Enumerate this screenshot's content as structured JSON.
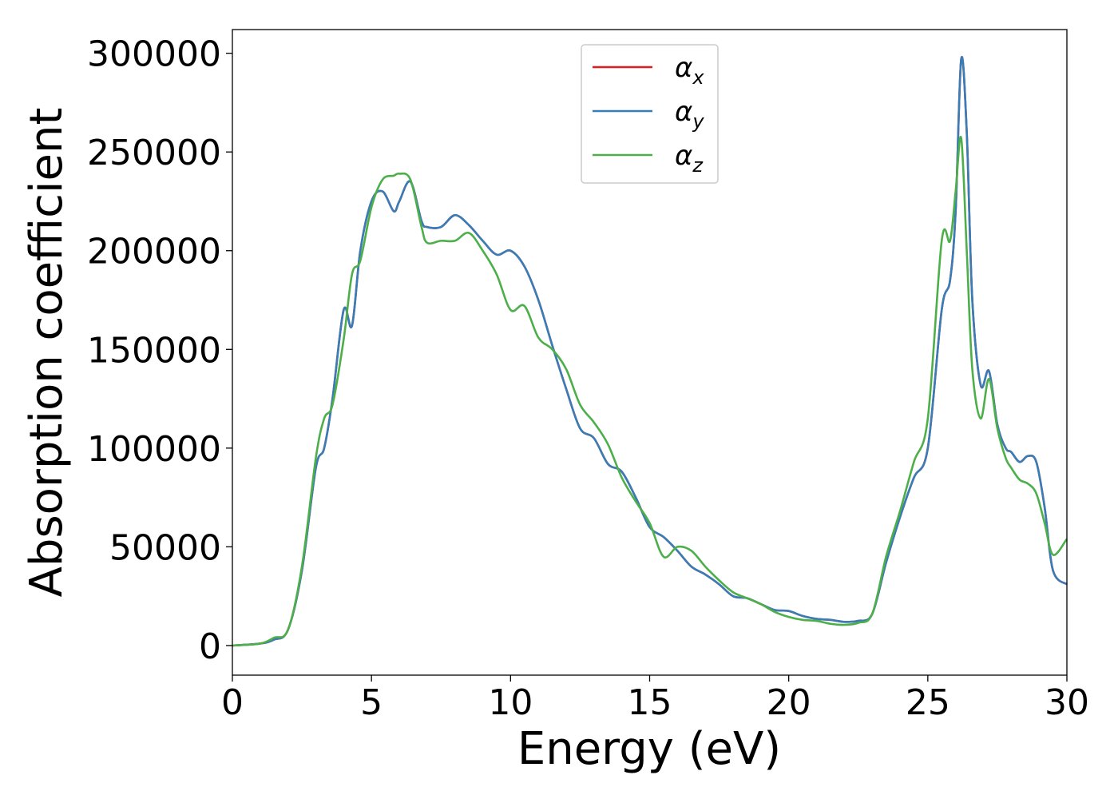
{
  "chart_data": {
    "type": "line",
    "title": "",
    "xlabel": "Energy (eV)",
    "ylabel": "Absorption coefficient",
    "xlim": [
      0,
      30
    ],
    "ylim": [
      -15000,
      312000
    ],
    "xticks": [
      0,
      5,
      10,
      15,
      20,
      25,
      30
    ],
    "xtick_labels": [
      "0",
      "5",
      "10",
      "15",
      "20",
      "25",
      "30"
    ],
    "yticks": [
      0,
      50000,
      100000,
      150000,
      200000,
      250000,
      300000
    ],
    "ytick_labels": [
      "0",
      "50000",
      "100000",
      "150000",
      "200000",
      "250000",
      "300000"
    ],
    "grid": false,
    "legend_position": "top-center",
    "colors": {
      "alpha_x": "#e41a1c",
      "alpha_y": "#377eb8",
      "alpha_z": "#4daf4a"
    },
    "series": [
      {
        "name": "α_x",
        "symbol": "α",
        "subscript": "x",
        "color": "#e41a1c",
        "x": [
          0,
          1,
          1.5,
          2,
          2.5,
          3,
          3.3,
          3.6,
          4,
          4.3,
          4.6,
          5,
          5.4,
          5.8,
          6,
          6.4,
          6.8,
          7,
          7.5,
          8,
          8.5,
          9,
          9.5,
          10,
          10.5,
          11,
          11.5,
          12,
          12.5,
          13,
          13.5,
          14,
          14.5,
          15,
          15.5,
          16,
          16.5,
          17,
          17.5,
          18,
          18.5,
          19,
          19.5,
          20,
          20.5,
          21,
          21.5,
          22,
          22.5,
          23,
          23.5,
          24,
          24.5,
          25,
          25.5,
          25.8,
          26,
          26.2,
          26.4,
          26.6,
          26.9,
          27.2,
          27.5,
          27.8,
          28,
          28.3,
          28.6,
          28.9,
          29.2,
          29.5,
          30
        ],
        "values": [
          0,
          1000,
          3000,
          8000,
          38000,
          90000,
          100000,
          125000,
          170000,
          162000,
          200000,
          225000,
          230000,
          220000,
          225000,
          235000,
          215000,
          212000,
          212000,
          218000,
          213000,
          205000,
          198000,
          200000,
          192000,
          175000,
          152000,
          130000,
          110000,
          105000,
          92000,
          88000,
          75000,
          60000,
          55000,
          48000,
          40000,
          36000,
          31000,
          25000,
          24000,
          21000,
          18000,
          17500,
          15000,
          13500,
          13000,
          12000,
          12500,
          16000,
          42000,
          65000,
          85000,
          100000,
          170000,
          185000,
          220000,
          297000,
          260000,
          175000,
          132000,
          139000,
          112000,
          100000,
          98000,
          93000,
          96000,
          93000,
          70000,
          38000,
          31000
        ]
      },
      {
        "name": "α_y",
        "symbol": "α",
        "subscript": "y",
        "color": "#377eb8",
        "x": [
          0,
          1,
          1.5,
          2,
          2.5,
          3,
          3.3,
          3.6,
          4,
          4.3,
          4.6,
          5,
          5.4,
          5.8,
          6,
          6.4,
          6.8,
          7,
          7.5,
          8,
          8.5,
          9,
          9.5,
          10,
          10.5,
          11,
          11.5,
          12,
          12.5,
          13,
          13.5,
          14,
          14.5,
          15,
          15.5,
          16,
          16.5,
          17,
          17.5,
          18,
          18.5,
          19,
          19.5,
          20,
          20.5,
          21,
          21.5,
          22,
          22.5,
          23,
          23.5,
          24,
          24.5,
          25,
          25.5,
          25.8,
          26,
          26.2,
          26.4,
          26.6,
          26.9,
          27.2,
          27.5,
          27.8,
          28,
          28.3,
          28.6,
          28.9,
          29.2,
          29.5,
          30
        ],
        "values": [
          0,
          1000,
          3000,
          8000,
          38000,
          90000,
          100000,
          125000,
          170000,
          162000,
          200000,
          225000,
          230000,
          220000,
          225000,
          235000,
          215000,
          212000,
          212000,
          218000,
          213000,
          205000,
          198000,
          200000,
          192000,
          175000,
          152000,
          130000,
          110000,
          105000,
          92000,
          88000,
          75000,
          60000,
          55000,
          48000,
          40000,
          36000,
          31000,
          25000,
          24000,
          21000,
          18000,
          17500,
          15000,
          13500,
          13000,
          12000,
          12500,
          16000,
          42000,
          65000,
          85000,
          100000,
          170000,
          185000,
          220000,
          297000,
          260000,
          175000,
          132000,
          139000,
          112000,
          100000,
          98000,
          93000,
          96000,
          93000,
          70000,
          38000,
          31000
        ]
      },
      {
        "name": "α_z",
        "symbol": "α",
        "subscript": "z",
        "color": "#4daf4a",
        "x": [
          0,
          1,
          1.5,
          2,
          2.5,
          3,
          3.3,
          3.6,
          4,
          4.3,
          4.6,
          5,
          5.4,
          5.8,
          6,
          6.4,
          6.8,
          7,
          7.5,
          8,
          8.5,
          9,
          9.5,
          10,
          10.5,
          11,
          11.5,
          12,
          12.5,
          13,
          13.5,
          14,
          14.5,
          15,
          15.5,
          16,
          16.5,
          17,
          17.5,
          18,
          18.5,
          19,
          19.5,
          20,
          20.5,
          21,
          21.5,
          22,
          22.5,
          23,
          23.5,
          24,
          24.5,
          25,
          25.5,
          25.8,
          26,
          26.2,
          26.4,
          26.6,
          26.9,
          27.2,
          27.5,
          27.8,
          28,
          28.3,
          28.6,
          28.9,
          29.2,
          29.5,
          30
        ],
        "values": [
          0,
          1000,
          4000,
          8000,
          40000,
          95000,
          115000,
          122000,
          155000,
          188000,
          195000,
          222000,
          236000,
          238000,
          239000,
          236000,
          212000,
          204000,
          205000,
          205000,
          209000,
          200000,
          188000,
          170000,
          172000,
          156000,
          150000,
          140000,
          122000,
          113000,
          102000,
          85000,
          73000,
          62000,
          45000,
          50000,
          48000,
          40000,
          33000,
          27000,
          24000,
          21000,
          17000,
          14500,
          13000,
          12500,
          11000,
          10500,
          11500,
          16000,
          45000,
          68000,
          93000,
          115000,
          205000,
          205000,
          230000,
          257000,
          200000,
          140000,
          115000,
          135000,
          110000,
          95000,
          90000,
          84000,
          82000,
          77000,
          62000,
          46000,
          54000
        ]
      }
    ]
  }
}
